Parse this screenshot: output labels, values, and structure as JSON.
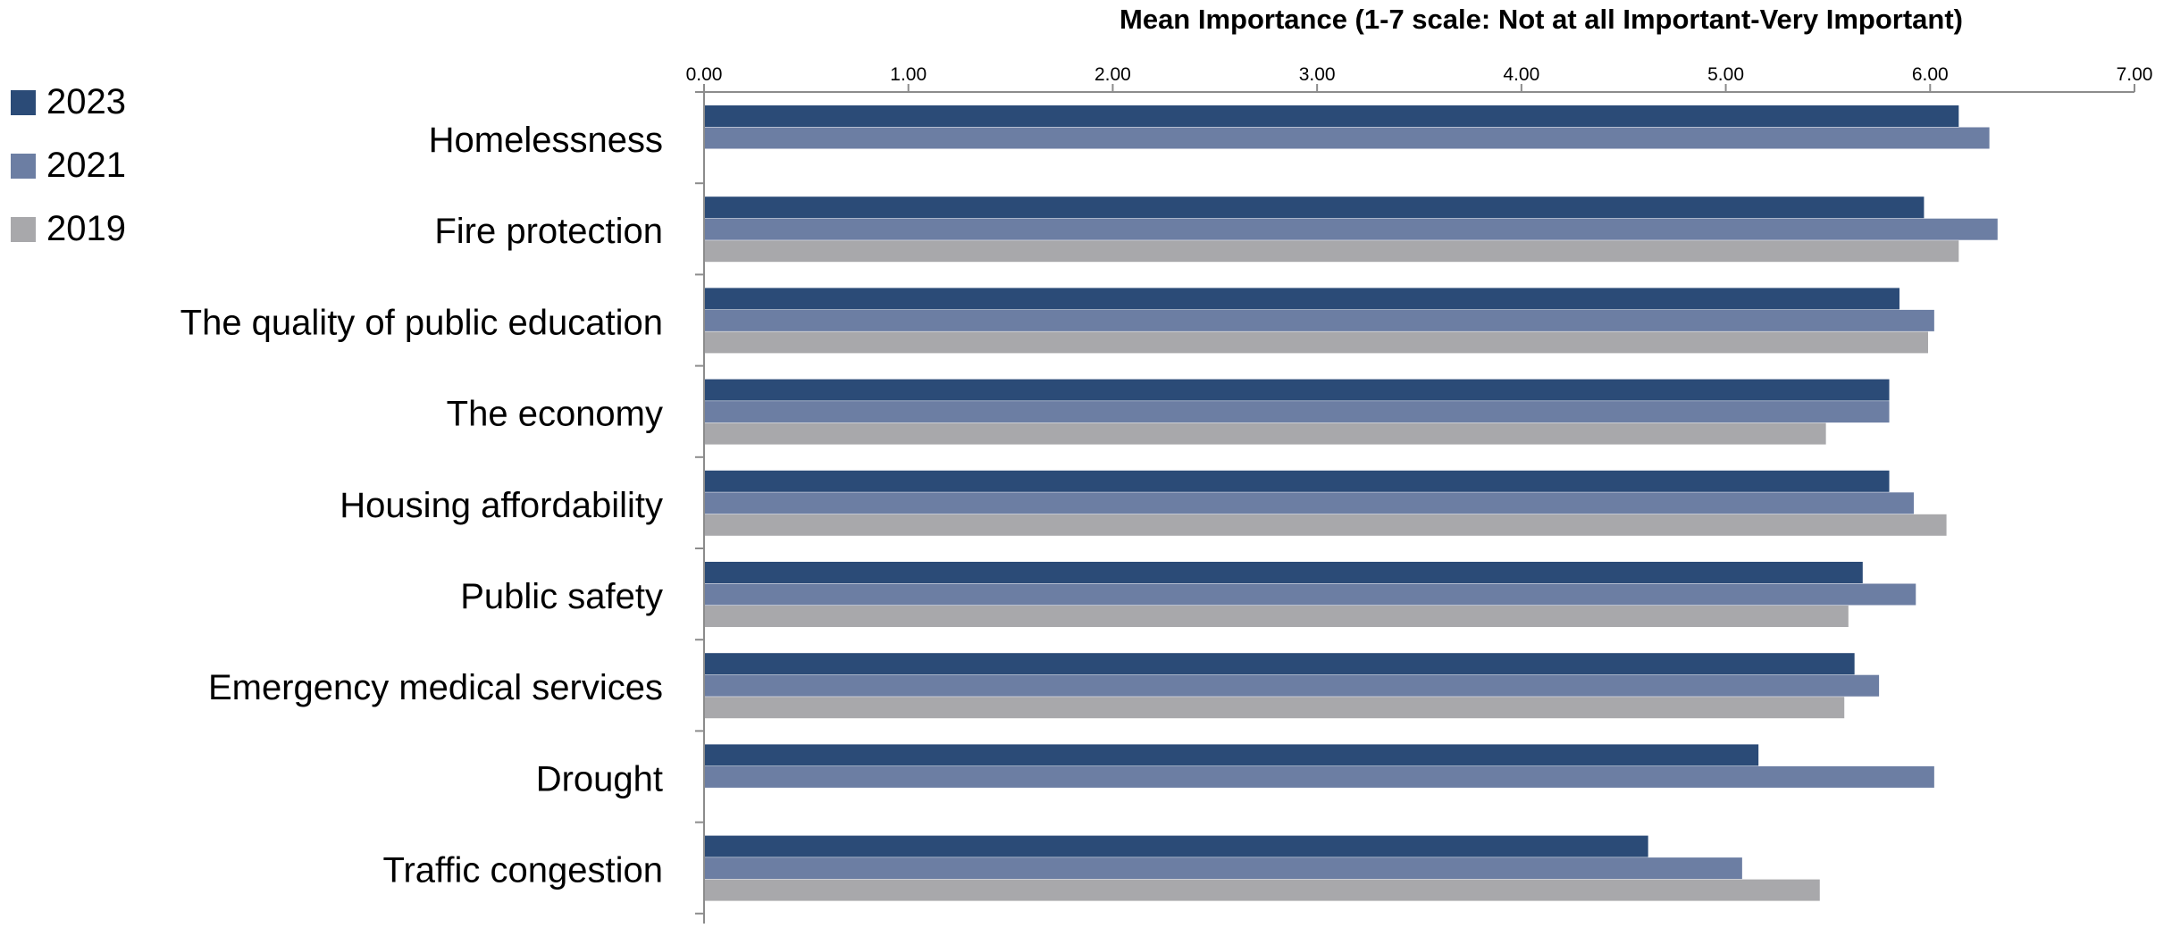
{
  "chart_data": {
    "type": "bar",
    "orientation": "horizontal",
    "xlabel": "Mean Importance (1-7 scale: Not at all Important-Very Important)",
    "xlim": [
      0,
      7
    ],
    "x_ticks": [
      "0.00",
      "1.00",
      "2.00",
      "3.00",
      "4.00",
      "5.00",
      "6.00",
      "7.00"
    ],
    "x_tick_values": [
      0,
      1,
      2,
      3,
      4,
      5,
      6,
      7
    ],
    "categories": [
      "Homelessness",
      "Fire protection",
      "The quality of public education",
      "The economy",
      "Housing affordability",
      "Public safety",
      "Emergency medical services",
      "Drought",
      "Traffic congestion"
    ],
    "series": [
      {
        "name": "2023",
        "color": "#2b4b77",
        "values": [
          6.14,
          5.97,
          5.85,
          5.8,
          5.8,
          5.67,
          5.63,
          5.16,
          4.62
        ]
      },
      {
        "name": "2021",
        "color": "#6c7ea3",
        "values": [
          6.29,
          6.33,
          6.02,
          5.8,
          5.92,
          5.93,
          5.75,
          6.02,
          5.08
        ]
      },
      {
        "name": "2019",
        "color": "#a8a8ab",
        "values": [
          null,
          6.14,
          5.99,
          5.49,
          6.08,
          5.6,
          5.58,
          null,
          5.46
        ]
      }
    ],
    "legend_position": "top-left",
    "grid": false
  }
}
